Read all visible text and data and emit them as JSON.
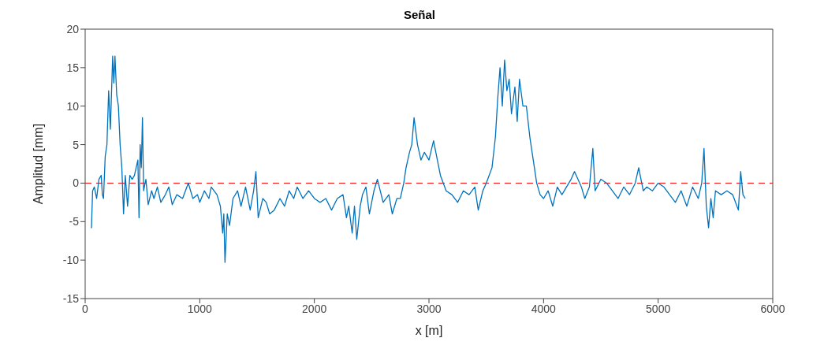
{
  "chart_data": {
    "type": "line",
    "title": "Señal",
    "xlabel": "x [m]",
    "ylabel": "Amplitud [mm]",
    "x": [
      50,
      55,
      65,
      80,
      100,
      120,
      140,
      150,
      160,
      175,
      190,
      205,
      220,
      240,
      250,
      260,
      275,
      290,
      305,
      320,
      335,
      350,
      370,
      390,
      410,
      430,
      460,
      470,
      480,
      490,
      500,
      510,
      530,
      550,
      580,
      600,
      630,
      660,
      700,
      730,
      760,
      800,
      850,
      900,
      940,
      980,
      1000,
      1040,
      1080,
      1100,
      1150,
      1180,
      1200,
      1210,
      1220,
      1240,
      1260,
      1290,
      1330,
      1360,
      1400,
      1440,
      1470,
      1490,
      1510,
      1550,
      1580,
      1610,
      1650,
      1700,
      1740,
      1780,
      1820,
      1850,
      1900,
      1950,
      2000,
      2050,
      2100,
      2150,
      2200,
      2250,
      2280,
      2300,
      2330,
      2350,
      2370,
      2400,
      2420,
      2450,
      2480,
      2520,
      2550,
      2600,
      2650,
      2680,
      2720,
      2750,
      2780,
      2800,
      2830,
      2850,
      2870,
      2900,
      2930,
      2960,
      3000,
      3040,
      3060,
      3100,
      3150,
      3200,
      3250,
      3300,
      3350,
      3400,
      3430,
      3470,
      3500,
      3550,
      3580,
      3600,
      3620,
      3640,
      3660,
      3680,
      3700,
      3720,
      3750,
      3770,
      3790,
      3820,
      3850,
      3880,
      3910,
      3940,
      3970,
      4000,
      4040,
      4080,
      4120,
      4160,
      4200,
      4240,
      4270,
      4300,
      4330,
      4360,
      4400,
      4430,
      4450,
      4500,
      4550,
      4600,
      4650,
      4700,
      4750,
      4800,
      4830,
      4870,
      4900,
      4950,
      5000,
      5050,
      5100,
      5150,
      5200,
      5250,
      5300,
      5350,
      5380,
      5400,
      5420,
      5440,
      5460,
      5480,
      5500,
      5550,
      5600,
      5650,
      5700,
      5720,
      5740,
      5760
    ],
    "series": [
      {
        "color": "#0072bd",
        "values": [
          -5.8,
          -5.8,
          -1,
          -0.5,
          -2,
          0.5,
          1,
          -1.5,
          -2,
          3.5,
          5,
          12,
          7,
          16.5,
          13,
          16.5,
          11.5,
          10,
          5,
          2,
          -4,
          1,
          -3,
          1,
          0.5,
          1,
          3,
          -4.5,
          5,
          2,
          8.5,
          -1,
          0.5,
          -2.8,
          -1,
          -2,
          -0.5,
          -2.5,
          -1.5,
          -0.5,
          -2.8,
          -1.5,
          -2,
          0,
          -2,
          -1.5,
          -2.5,
          -1,
          -2,
          -0.5,
          -1.5,
          -3,
          -6.5,
          -4,
          -10.3,
          -4,
          -5.5,
          -2,
          -1,
          -3,
          -0.5,
          -3.5,
          -1,
          1.5,
          -4.5,
          -2,
          -2.5,
          -4,
          -3.5,
          -2,
          -3,
          -1,
          -2,
          -0.5,
          -2,
          -1,
          -2,
          -2.5,
          -2,
          -3.5,
          -2,
          -1.5,
          -4.5,
          -3,
          -6.5,
          -3,
          -7.3,
          -3,
          -1.5,
          -0.5,
          -4,
          -1,
          0.5,
          -2.5,
          -1.5,
          -4,
          -2,
          -2,
          0,
          2,
          4,
          5,
          8.5,
          5,
          3,
          4,
          3,
          5.5,
          4,
          1,
          -1,
          -1.5,
          -2.5,
          -1,
          -1.5,
          -0.5,
          -3.5,
          -1,
          0,
          2,
          6,
          11,
          15,
          10,
          16,
          12,
          13.5,
          9,
          12.5,
          8,
          13.5,
          10,
          10,
          6,
          3,
          0,
          -1.5,
          -2,
          -1,
          -3,
          -0.5,
          -1.5,
          -0.5,
          0.5,
          1.5,
          0.5,
          -0.5,
          -2,
          -0.5,
          4.5,
          -1,
          0.5,
          0,
          -1,
          -2,
          -0.5,
          -1.5,
          0,
          2,
          -1,
          -0.5,
          -1,
          0,
          -0.5,
          -1.5,
          -2.5,
          -1,
          -3,
          -0.5,
          -2,
          0,
          4.5,
          -3,
          -5.8,
          -2,
          -4.5,
          -1,
          -1.5,
          -1,
          -1.5,
          -3.5,
          1.5,
          -1.5,
          -2
        ]
      }
    ],
    "xlim": [
      0,
      6000
    ],
    "xticks": [
      0,
      1000,
      2000,
      3000,
      4000,
      5000,
      6000
    ],
    "ylim": [
      -15,
      20
    ],
    "yticks": [
      -15,
      -10,
      -5,
      0,
      5,
      10,
      15,
      20
    ],
    "ref_lines": [
      {
        "axis": "y",
        "value": 0,
        "color": "#ff0000",
        "line_style": "dashed"
      }
    ],
    "marker": "none",
    "line_style": "solid"
  }
}
